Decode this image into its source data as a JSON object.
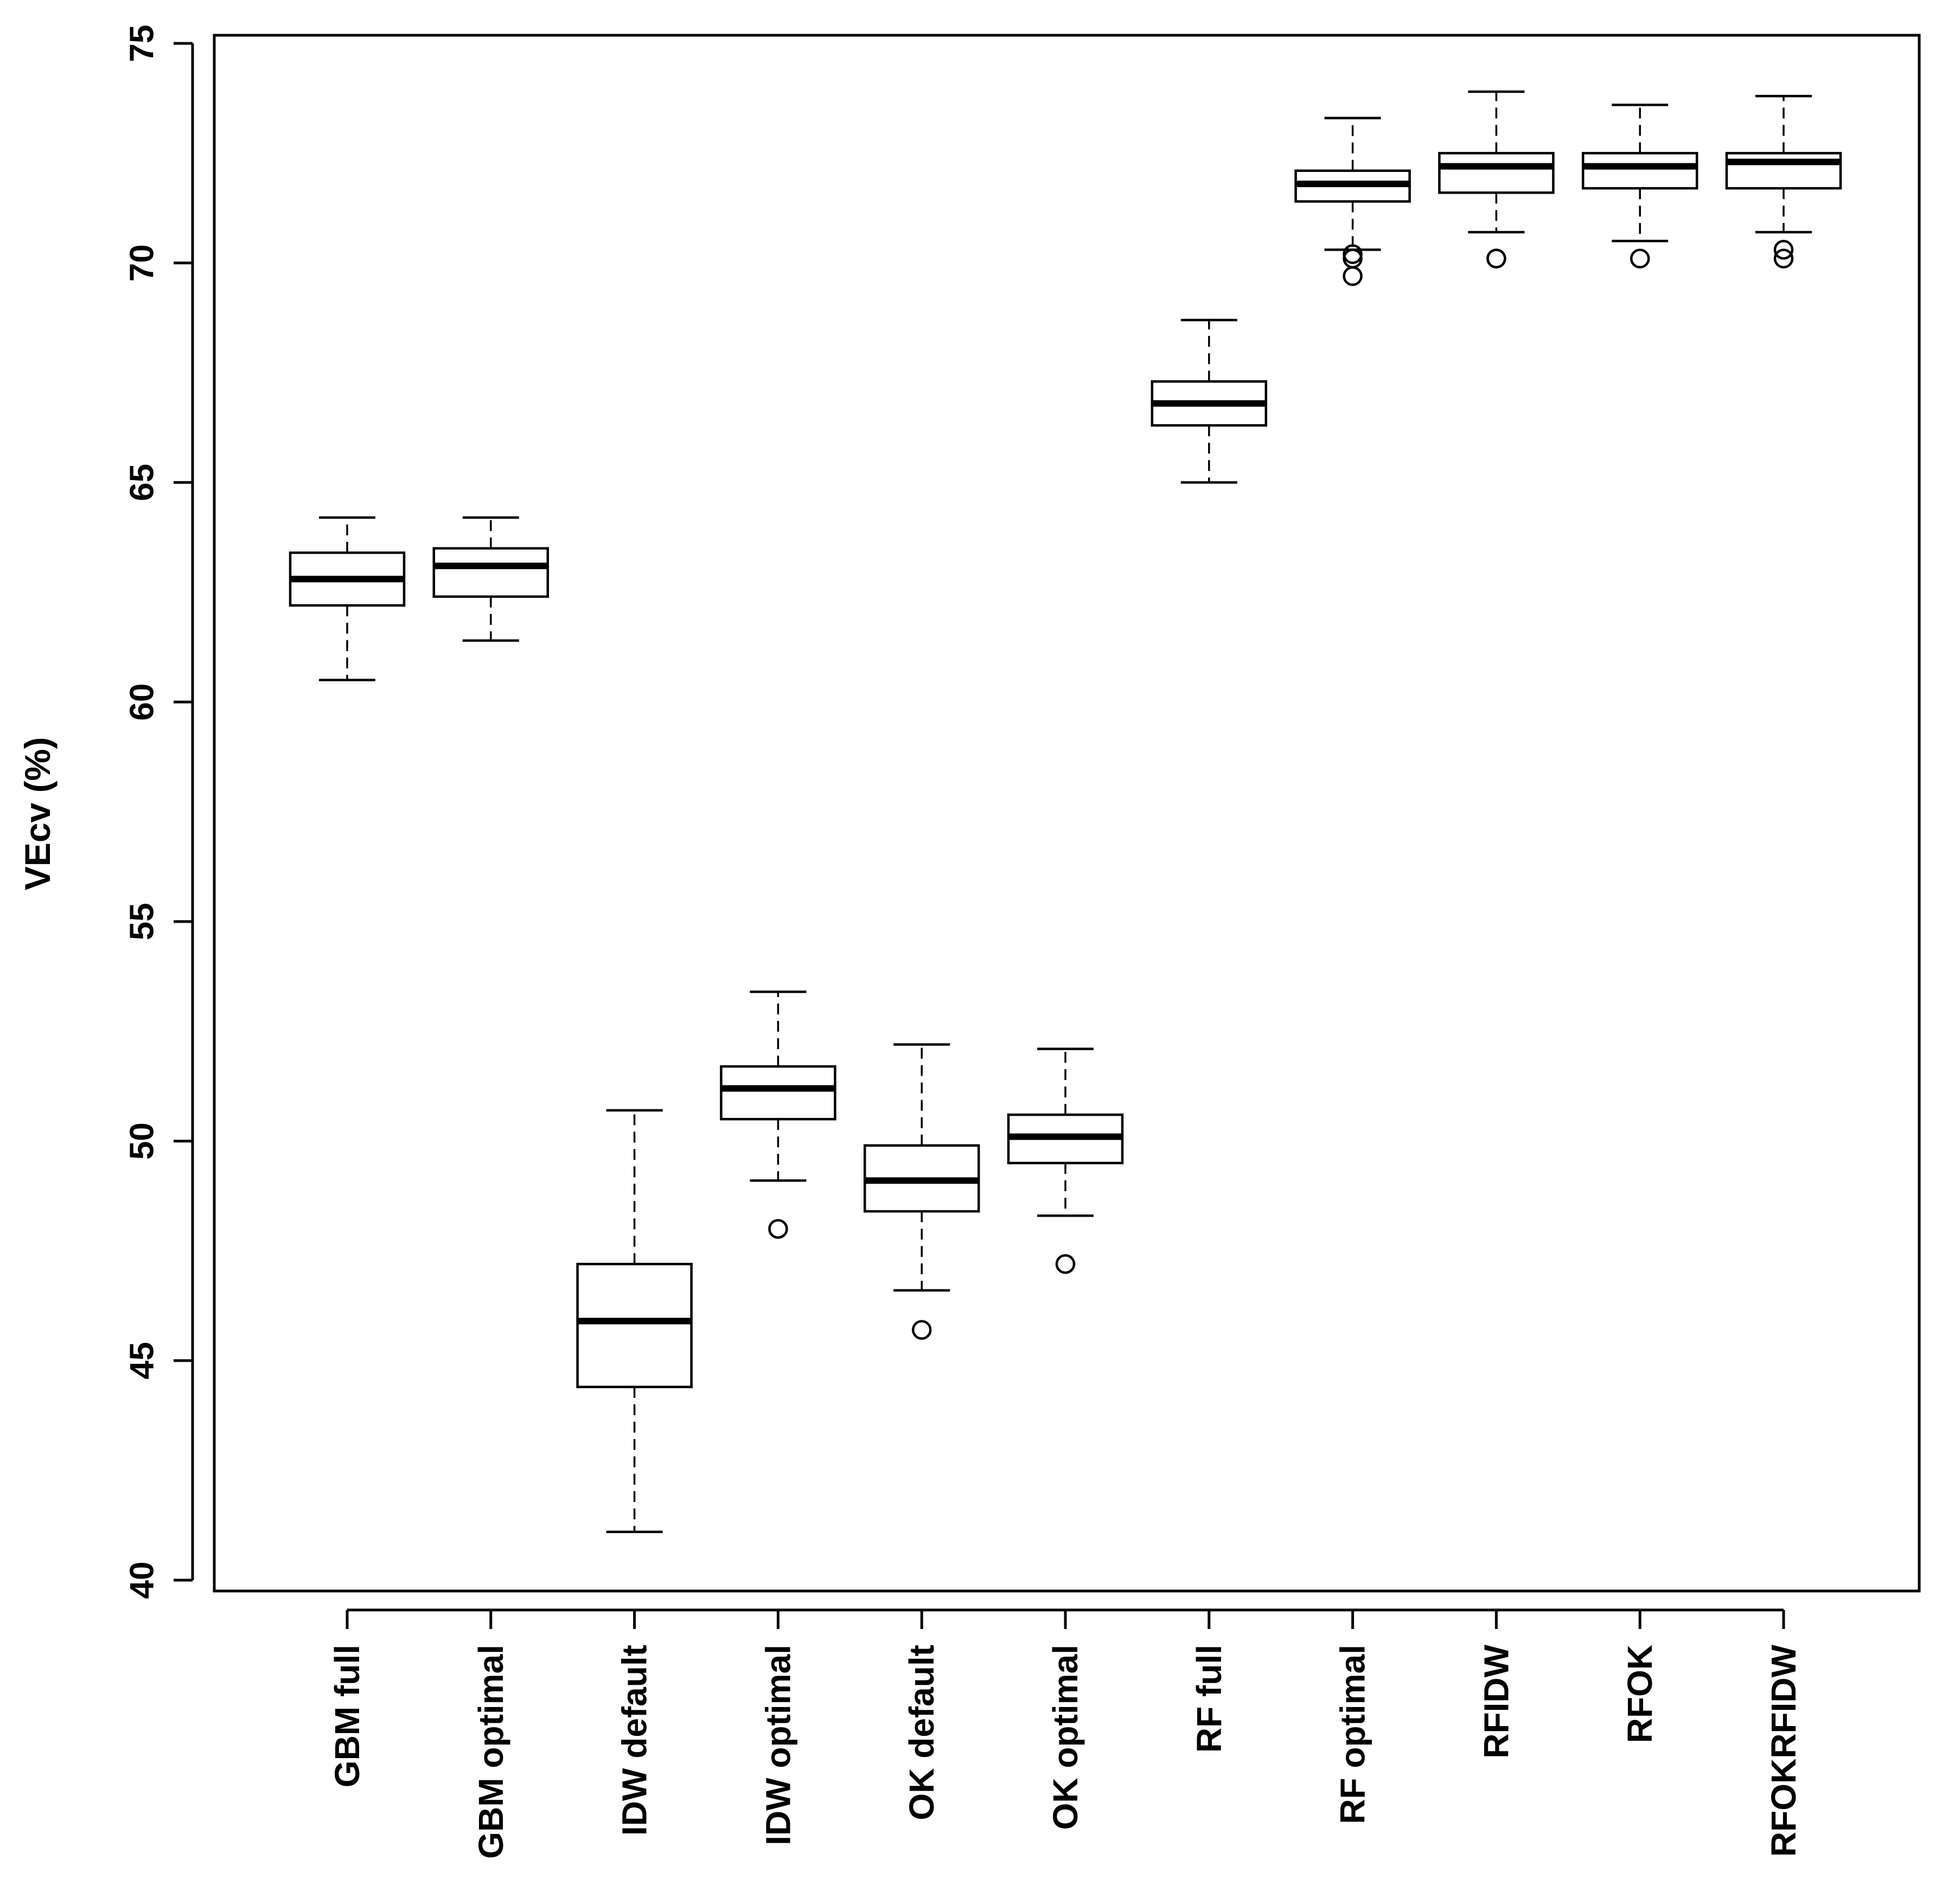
{
  "chart_data": {
    "type": "boxplot",
    "title": "",
    "xlabel": "",
    "ylabel": "VEcv (%)",
    "ylim": [
      40,
      75
    ],
    "yticks": [
      40,
      45,
      50,
      55,
      60,
      65,
      70,
      75
    ],
    "categories": [
      "GBM full",
      "GBM optimal",
      "IDW default",
      "IDW optimal",
      "OK default",
      "OK optimal",
      "RF full",
      "RF optimal",
      "RFIDW",
      "RFOK",
      "RFOKRFIDW"
    ],
    "boxes": [
      {
        "name": "GBM full",
        "whisker_low": 60.5,
        "q1": 62.2,
        "median": 62.8,
        "q3": 63.4,
        "whisker_high": 64.2,
        "outliers": []
      },
      {
        "name": "GBM optimal",
        "whisker_low": 61.4,
        "q1": 62.4,
        "median": 63.1,
        "q3": 63.5,
        "whisker_high": 64.2,
        "outliers": []
      },
      {
        "name": "IDW default",
        "whisker_low": 41.1,
        "q1": 44.4,
        "median": 45.9,
        "q3": 47.2,
        "whisker_high": 50.7,
        "outliers": []
      },
      {
        "name": "IDW optimal",
        "whisker_low": 49.1,
        "q1": 50.5,
        "median": 51.2,
        "q3": 51.7,
        "whisker_high": 53.4,
        "outliers": [
          48.0
        ]
      },
      {
        "name": "OK default",
        "whisker_low": 46.6,
        "q1": 48.4,
        "median": 49.1,
        "q3": 49.9,
        "whisker_high": 52.2,
        "outliers": [
          45.7
        ]
      },
      {
        "name": "OK optimal",
        "whisker_low": 48.3,
        "q1": 49.5,
        "median": 50.1,
        "q3": 50.6,
        "whisker_high": 52.1,
        "outliers": [
          47.2
        ]
      },
      {
        "name": "RF full",
        "whisker_low": 65.0,
        "q1": 66.3,
        "median": 66.8,
        "q3": 67.3,
        "whisker_high": 68.7,
        "outliers": []
      },
      {
        "name": "RF optimal",
        "whisker_low": 70.3,
        "q1": 71.4,
        "median": 71.8,
        "q3": 72.1,
        "whisker_high": 73.3,
        "outliers": [
          70.2,
          70.1,
          69.7
        ]
      },
      {
        "name": "RFIDW",
        "whisker_low": 70.7,
        "q1": 71.6,
        "median": 72.2,
        "q3": 72.5,
        "whisker_high": 73.9,
        "outliers": [
          70.1,
          70.1
        ]
      },
      {
        "name": "RFOK",
        "whisker_low": 70.5,
        "q1": 71.7,
        "median": 72.2,
        "q3": 72.5,
        "whisker_high": 73.6,
        "outliers": [
          70.1
        ]
      },
      {
        "name": "RFOKRFIDW",
        "whisker_low": 70.7,
        "q1": 71.7,
        "median": 72.3,
        "q3": 72.5,
        "whisker_high": 73.8,
        "outliers": [
          70.3,
          70.1
        ]
      }
    ]
  }
}
